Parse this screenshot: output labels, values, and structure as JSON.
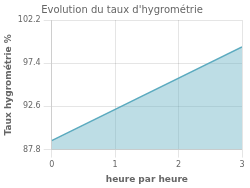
{
  "chart_data": {
    "type": "area",
    "title": "Evolution du taux d'hygrométrie",
    "x_label": "heure par heure",
    "y_label": "Taux hygrométrie %",
    "x": [
      0,
      3
    ],
    "series": [
      {
        "color": "#5baabf",
        "values": [
          88.8,
          99.2
        ]
      }
    ],
    "xlim": [
      0,
      3
    ],
    "xticks": [
      0,
      1,
      2,
      3
    ],
    "ylim": [
      87.8,
      102.2
    ],
    "yticks": [
      87.8,
      92.6,
      97.4,
      102.2
    ],
    "grid": true
  }
}
